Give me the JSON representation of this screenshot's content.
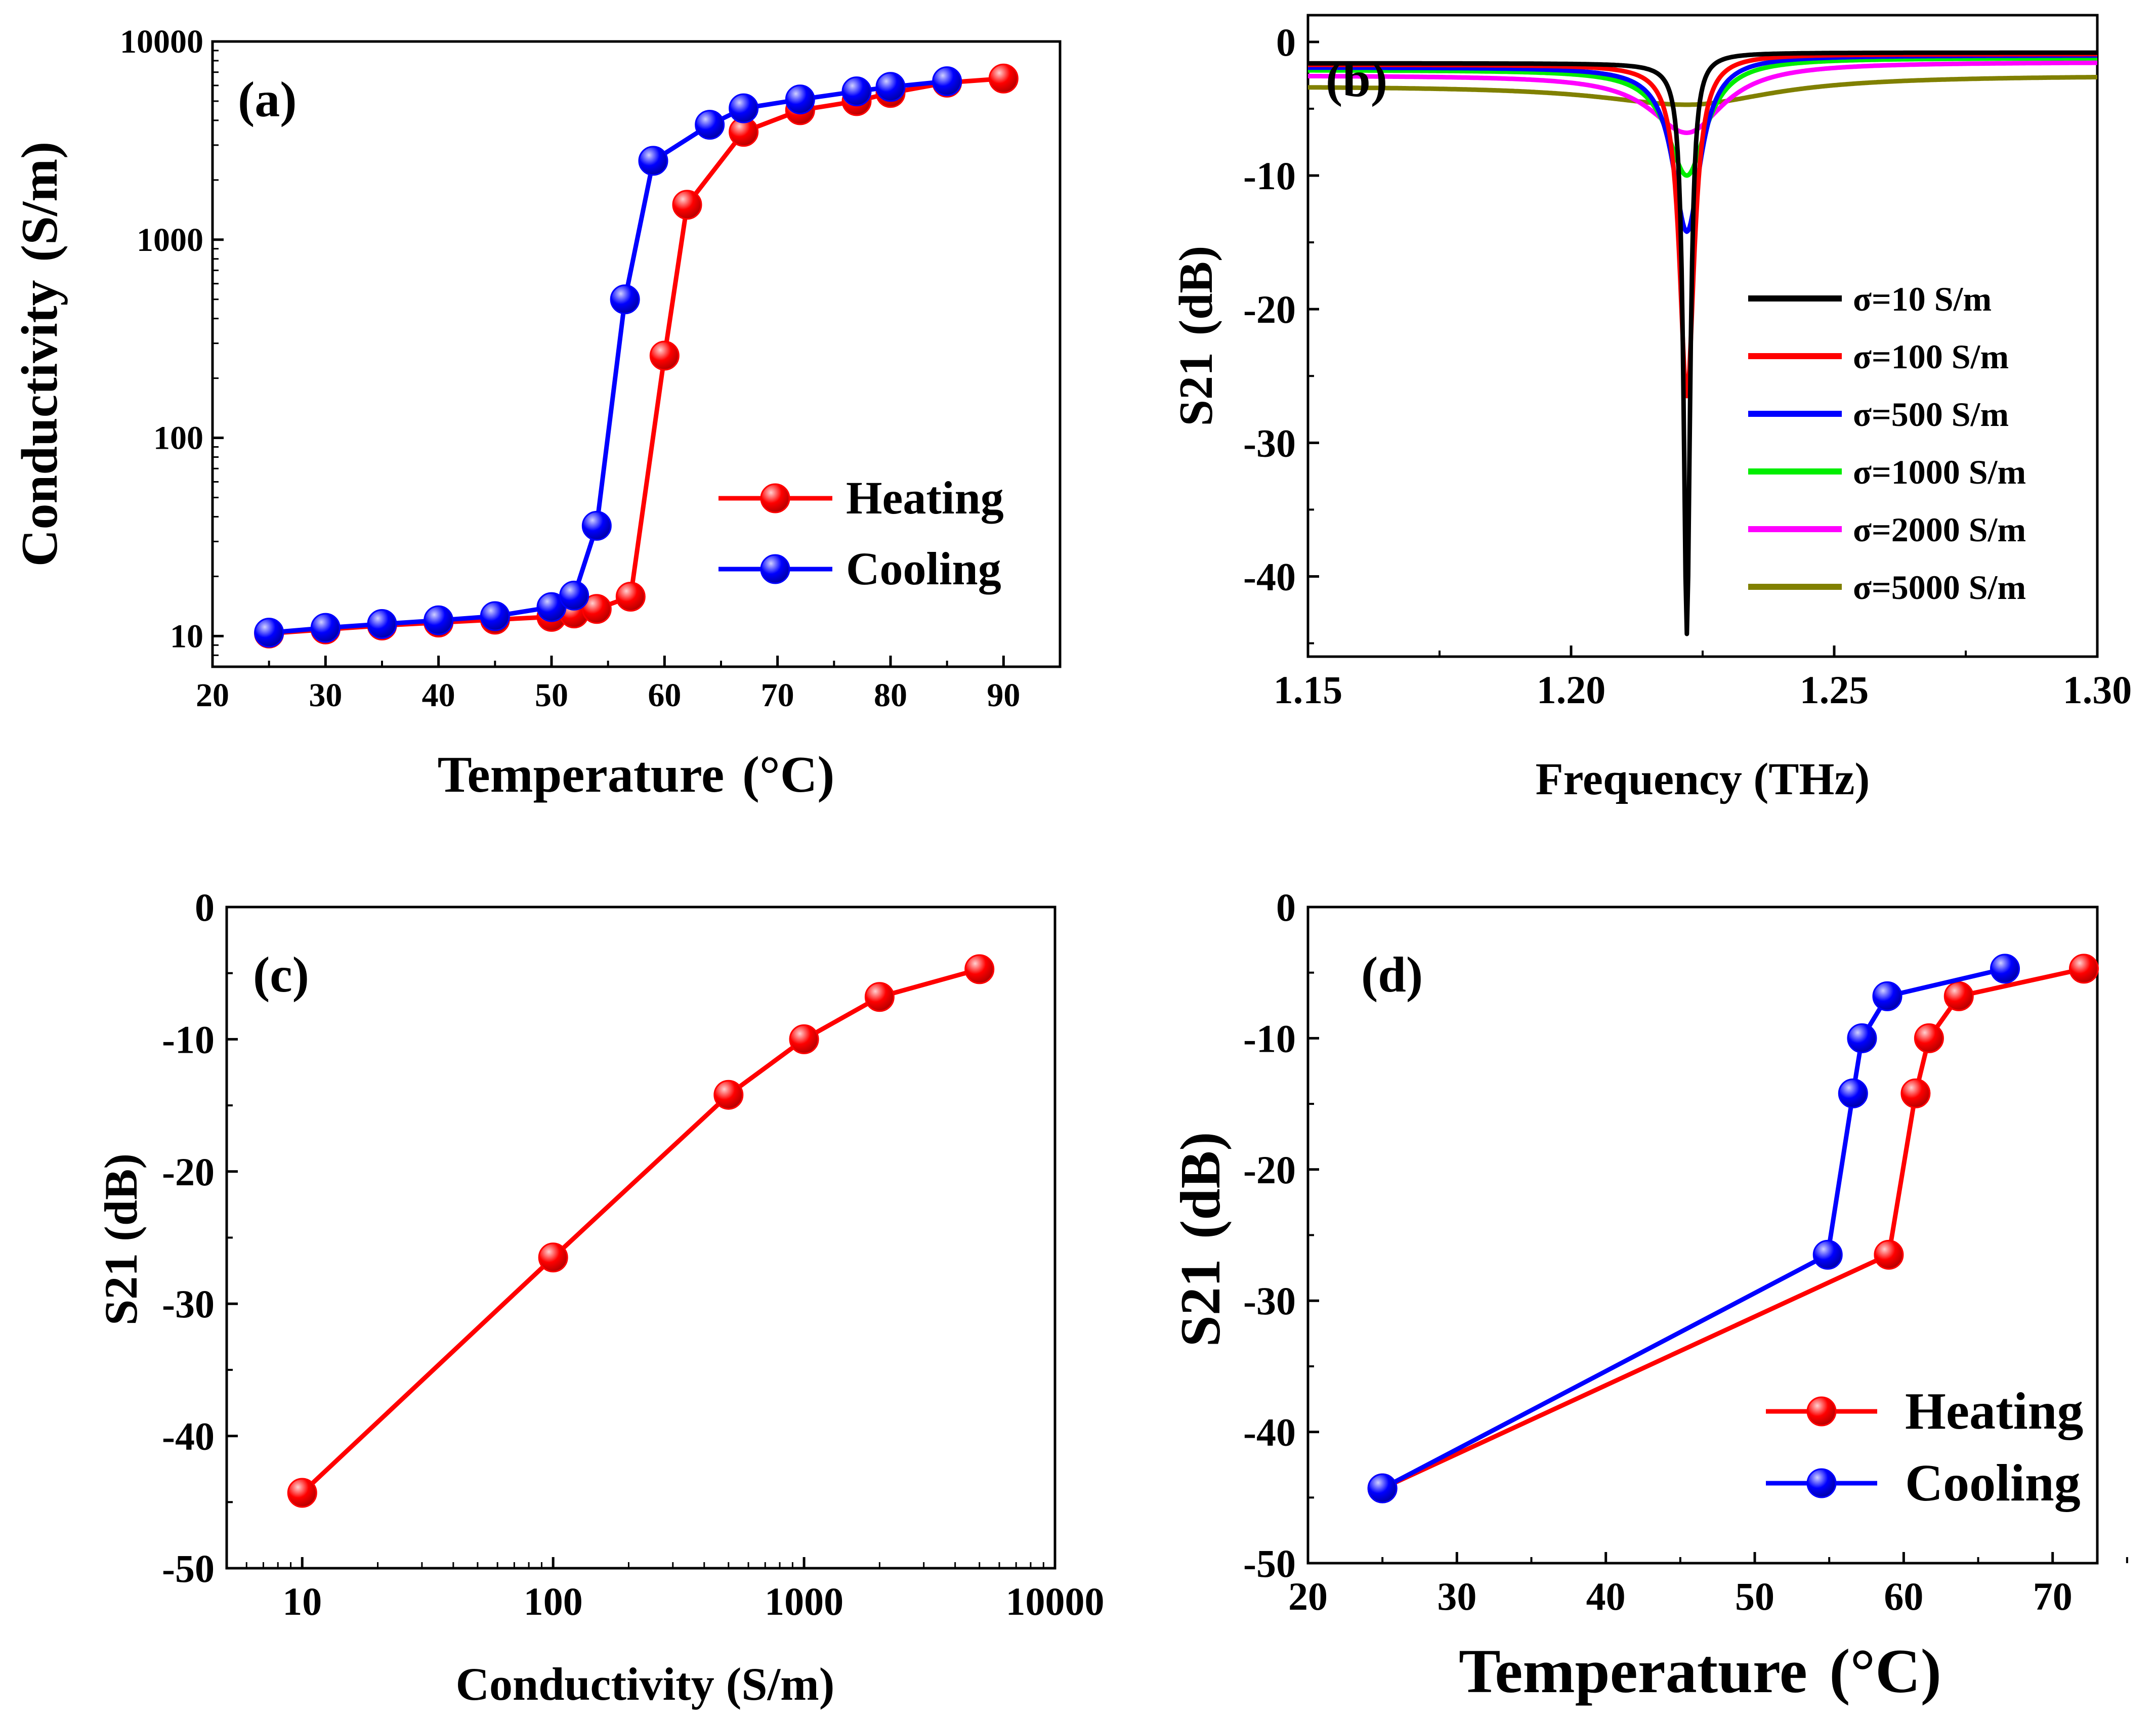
{
  "chart_data": [
    {
      "panel": "(a)",
      "type": "line",
      "xlabel": "Temperature",
      "xunit": "(°C)",
      "ylabel": "Conductivity",
      "yunit": "(S/m)",
      "xlim": [
        20,
        95
      ],
      "xticks": [
        "20",
        "30",
        "40",
        "50",
        "60",
        "70",
        "80",
        "90"
      ],
      "ylim": [
        7,
        10000
      ],
      "yscale": "log",
      "yticks": [
        "10",
        "100",
        "1000",
        "10000"
      ],
      "legend_position": "center-right",
      "series": [
        {
          "name": "Heating",
          "color": "#ff0000",
          "x": [
            25,
            30,
            35,
            40,
            45,
            50,
            52,
            54,
            57,
            60,
            62,
            67,
            72,
            77,
            80,
            85,
            90
          ],
          "y": [
            10.3,
            10.8,
            11.3,
            11.7,
            12.1,
            12.5,
            13.0,
            13.7,
            15.8,
            260,
            1500,
            3500,
            4500,
            5000,
            5500,
            6200,
            6500
          ]
        },
        {
          "name": "Cooling",
          "color": "#0000ff",
          "x": [
            25,
            30,
            35,
            40,
            45,
            50,
            52,
            54,
            56.5,
            59,
            64,
            67,
            72,
            77,
            80,
            85
          ],
          "y": [
            10.4,
            11.0,
            11.5,
            12.0,
            12.6,
            14.0,
            16.0,
            36,
            500,
            2500,
            3800,
            4600,
            5100,
            5600,
            5900,
            6300
          ]
        }
      ]
    },
    {
      "panel": "(b)",
      "type": "line",
      "xlabel": "Frequency (THz)",
      "ylabel": "S21",
      "yunit": "(dB)",
      "xlim": [
        1.15,
        1.3
      ],
      "xticks": [
        "1.15",
        "1.20",
        "1.25",
        "1.30"
      ],
      "ylim": [
        -46,
        2
      ],
      "yticks": [
        "0",
        "-10",
        "-20",
        "-30",
        "-40"
      ],
      "legend_position": "lower-right",
      "resonance_frequency": 1.222,
      "series": [
        {
          "name": "σ=10 S/m",
          "color": "#000000",
          "min_db": -44.3,
          "left_db": -1.6,
          "right_db": -0.8
        },
        {
          "name": "σ=100 S/m",
          "color": "#ff0000",
          "min_db": -26.5,
          "left_db": -1.7,
          "right_db": -0.9
        },
        {
          "name": "σ=500 S/m",
          "color": "#0000ff",
          "min_db": -14.2,
          "left_db": -1.9,
          "right_db": -1.0
        },
        {
          "name": "σ=1000 S/m",
          "color": "#00ee00",
          "min_db": -10.0,
          "left_db": -2.1,
          "right_db": -1.2
        },
        {
          "name": "σ=2000 S/m",
          "color": "#ff00ff",
          "min_db": -6.8,
          "left_db": -2.5,
          "right_db": -1.5
        },
        {
          "name": "σ=5000 S/m",
          "color": "#808000",
          "min_db": -4.7,
          "left_db": -3.3,
          "right_db": -2.5
        }
      ]
    },
    {
      "panel": "(c)",
      "type": "line",
      "xlabel": "Conductivity (S/m)",
      "ylabel": "S21 (dB)",
      "xlim": [
        5,
        10000
      ],
      "xscale": "log",
      "xticks": [
        "10",
        "100",
        "1000",
        "10000"
      ],
      "ylim": [
        -50,
        0
      ],
      "yticks": [
        "0",
        "-10",
        "-20",
        "-30",
        "-40",
        "-50"
      ],
      "series": [
        {
          "color": "#ff0000",
          "x": [
            10,
            100,
            500,
            1000,
            2000,
            5000
          ],
          "y": [
            -44.3,
            -26.5,
            -14.2,
            -10.0,
            -6.8,
            -4.7
          ]
        }
      ]
    },
    {
      "panel": "(d)",
      "type": "line",
      "xlabel": "Temperature",
      "xunit": "(°C)",
      "ylabel": "S21",
      "yunit": "(dB)",
      "xlim": [
        20,
        73
      ],
      "xticks": [
        "20",
        "30",
        "40",
        "50",
        "60",
        "70"
      ],
      "ylim": [
        -50,
        0
      ],
      "yticks": [
        "0",
        "-10",
        "-20",
        "-30",
        "-40",
        "-50"
      ],
      "legend_position": "lower-right",
      "series": [
        {
          "name": "Heating",
          "color": "#ff0000",
          "x": [
            25,
            59,
            60.8,
            61.7,
            63.7,
            72.1
          ],
          "y": [
            -44.3,
            -26.5,
            -14.2,
            -10.0,
            -6.8,
            -4.7
          ]
        },
        {
          "name": "Cooling",
          "color": "#0000ff",
          "x": [
            25,
            54.9,
            56.6,
            57.2,
            58.9,
            66.8
          ],
          "y": [
            -44.3,
            -26.5,
            -14.2,
            -10.0,
            -6.8,
            -4.7
          ]
        }
      ]
    }
  ]
}
